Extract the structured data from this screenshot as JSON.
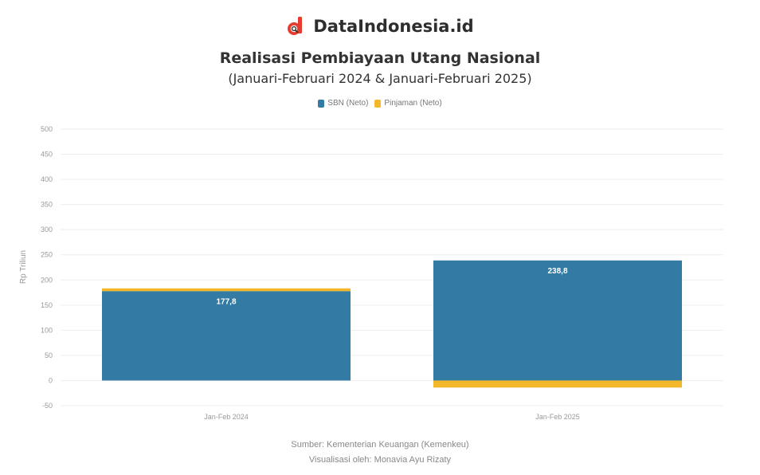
{
  "brand": {
    "name": "DataIndonesia.id",
    "logo_icon": "dataindonesia-logo-icon"
  },
  "colors": {
    "accent_red": "#e63b2e",
    "sbn": "#337ba3",
    "pinjaman": "#f2b72a",
    "grid": "#eeeeee"
  },
  "chart_data": {
    "type": "bar",
    "stacked": true,
    "title": "Realisasi Pembiayaan Utang Nasional",
    "subtitle": "(Januari-Februari 2024 & Januari-Februari 2025)",
    "ylabel": "Rp Triliun",
    "xlabel": "",
    "categories": [
      "Jan-Feb 2024",
      "Jan-Feb 2025"
    ],
    "series": [
      {
        "name": "SBN (Neto)",
        "color": "#337ba3",
        "values": [
          177.8,
          238.8
        ],
        "labels": [
          "177,8",
          "238,8"
        ]
      },
      {
        "name": "Pinjaman (Neto)",
        "color": "#f2b72a",
        "values": [
          5.5,
          -14.0
        ]
      }
    ],
    "ylim": [
      -50,
      500
    ],
    "yticks": [
      -50,
      0,
      50,
      100,
      150,
      200,
      250,
      300,
      350,
      400,
      450,
      500
    ],
    "ytick_labels": [
      "-50",
      "0",
      "50",
      "100",
      "150",
      "200",
      "250",
      "300",
      "350",
      "400",
      "450",
      "500"
    ],
    "grid": true,
    "legend_position": "top-center"
  },
  "footer": {
    "source": "Sumber: Kementerian Keuangan (Kemenkeu)",
    "credit": "Visualisasi oleh: Monavia Ayu Rizaty"
  }
}
